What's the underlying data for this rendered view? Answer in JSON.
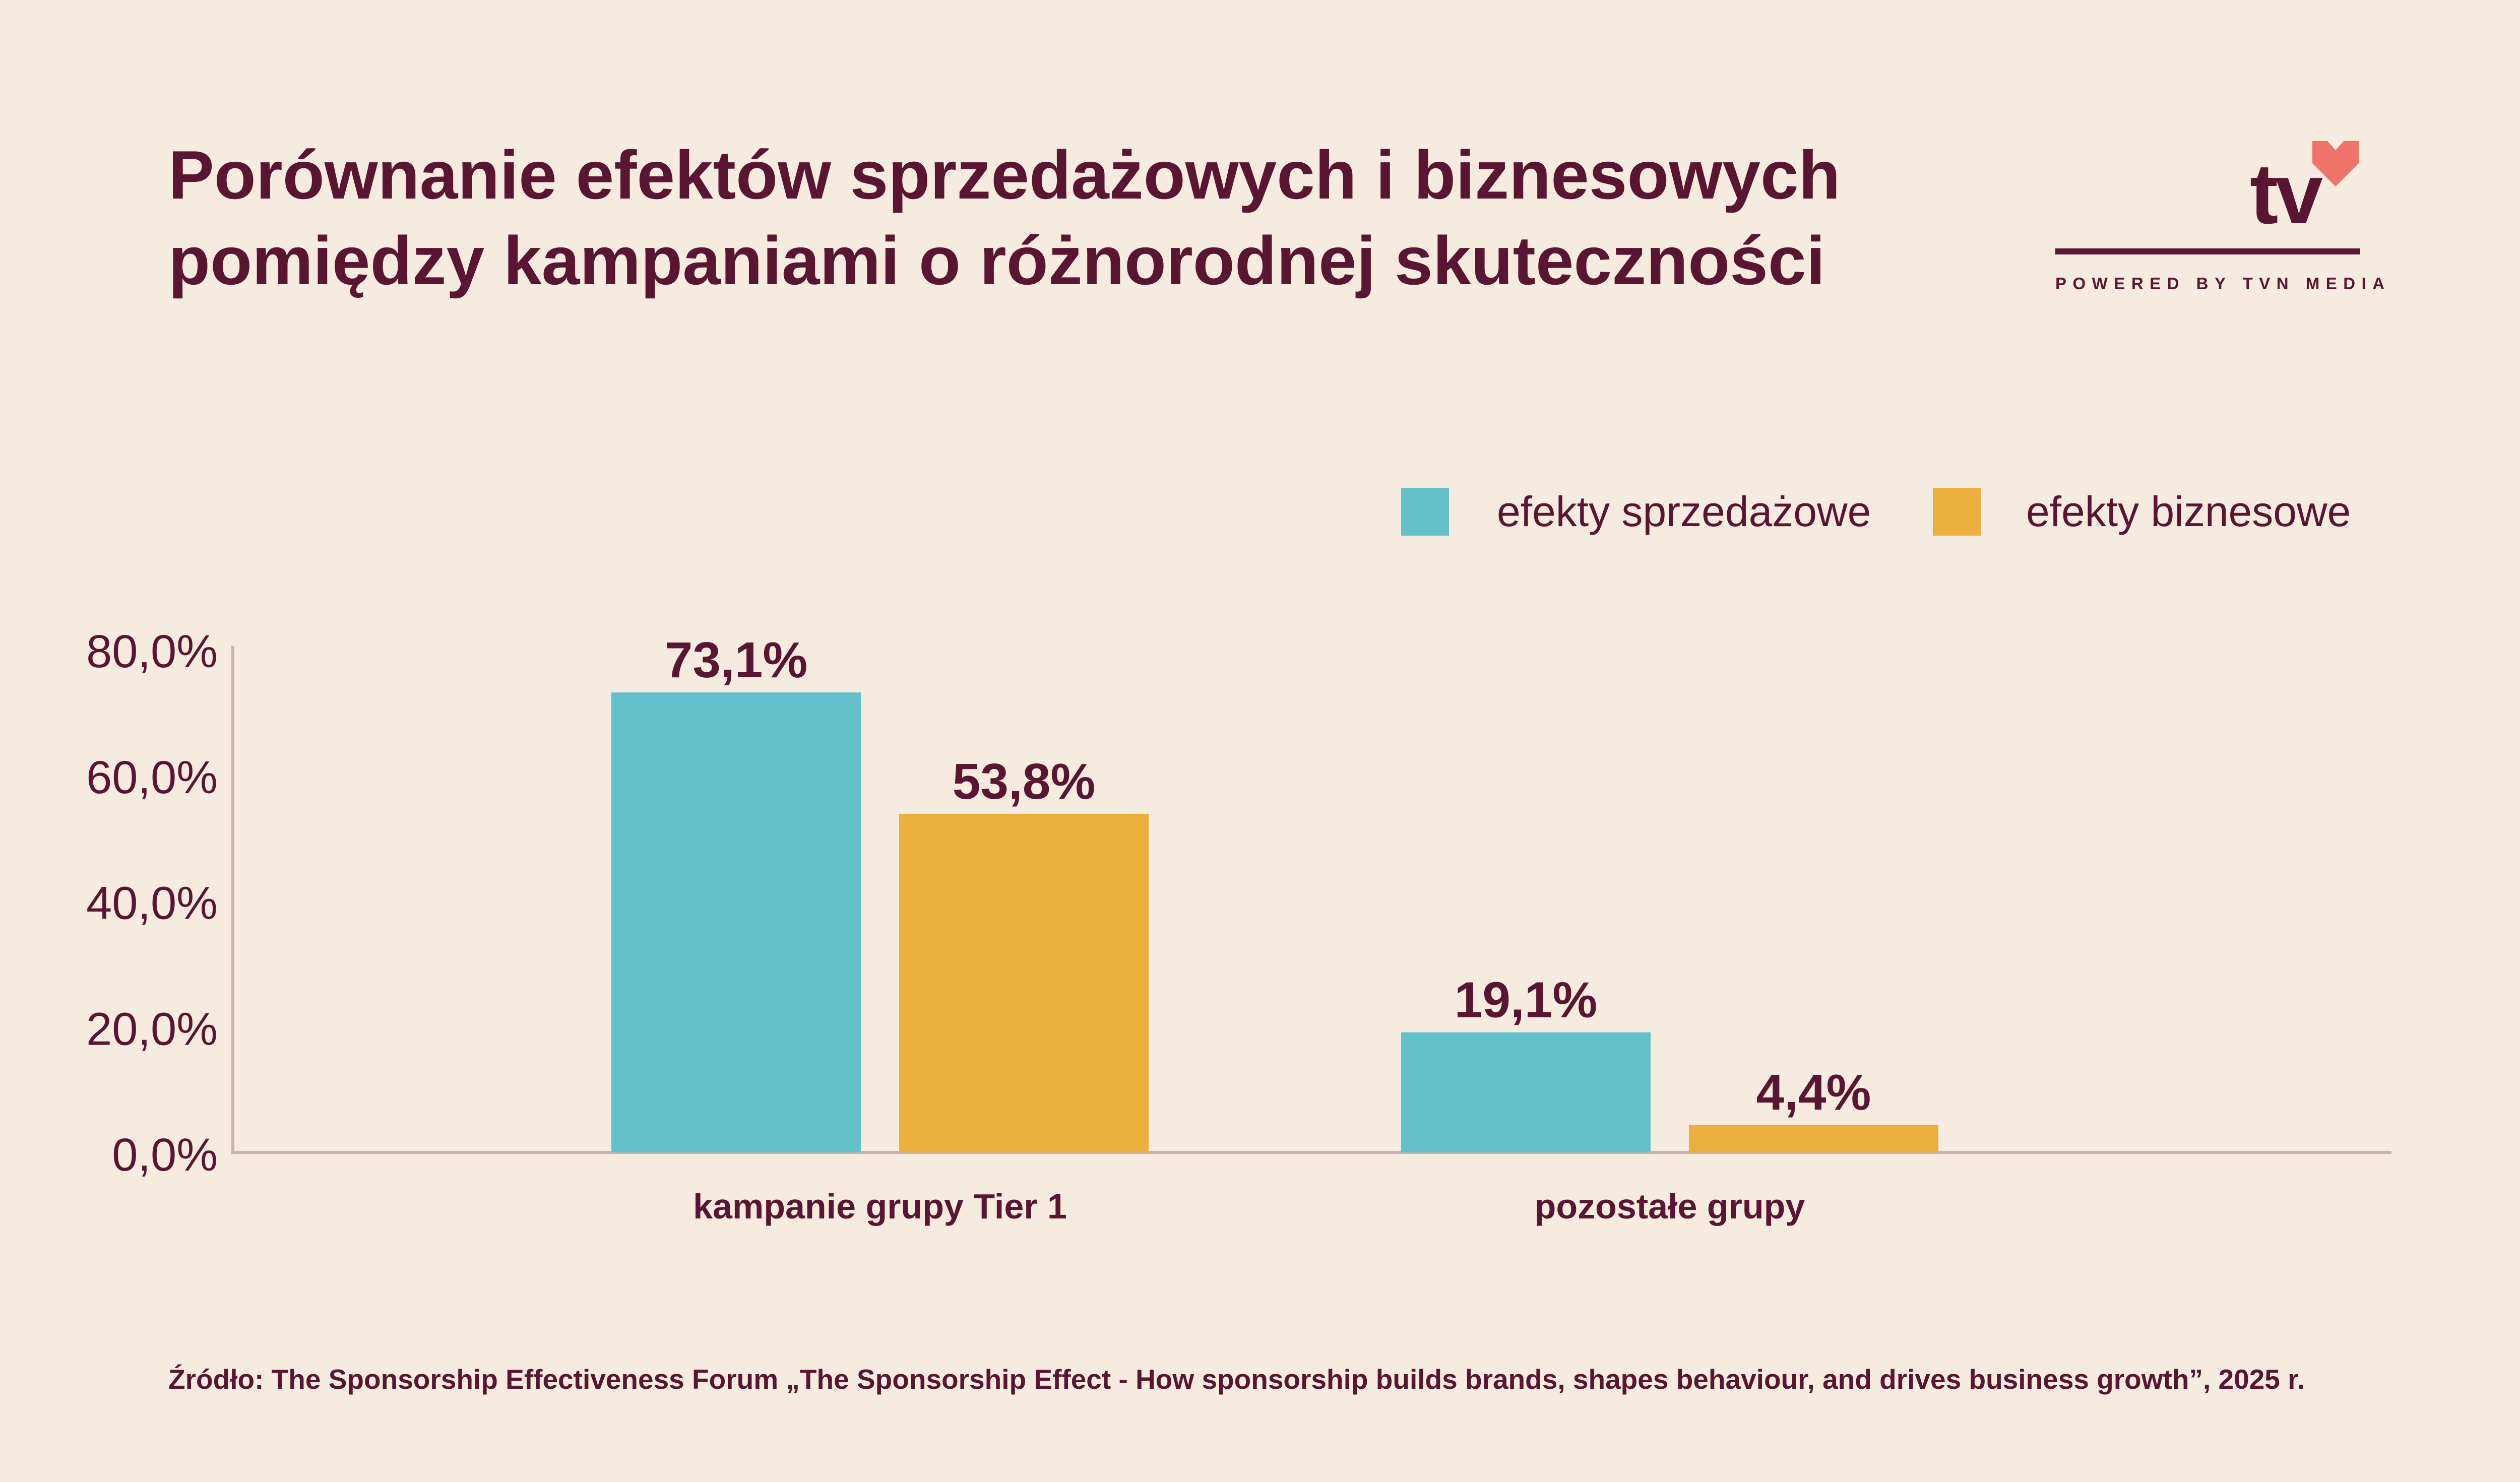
{
  "title": {
    "line1": "Porównanie efektów sprzedażowych i biznesowych",
    "line2": "pomiędzy kampaniami o różnorodnej skuteczności"
  },
  "logo": {
    "text": "tv",
    "tagline": "POWERED BY TVN MEDIA",
    "icon": "heart-icon"
  },
  "colors": {
    "background": "#f5ebdf",
    "text": "#5a1533",
    "series_sales": "#64c1cc",
    "series_business": "#ecae3c",
    "heart": "#f0736a",
    "axis": "#c9b3ae"
  },
  "chart_data": {
    "type": "bar",
    "categories": [
      "kampanie grupy Tier 1",
      "pozostałe grupy"
    ],
    "series": [
      {
        "name": "efekty sprzedażowe",
        "values": [
          73.1,
          19.1
        ],
        "labels": [
          "73,1%",
          "19,1%"
        ],
        "color": "#64c1cc"
      },
      {
        "name": "efekty biznesowe",
        "values": [
          53.8,
          4.4
        ],
        "labels": [
          "53,8%",
          "4,4%"
        ],
        "color": "#ecae3c"
      }
    ],
    "ylim": [
      0,
      80
    ],
    "yticks": [
      0,
      20,
      40,
      60,
      80
    ],
    "ytick_labels": [
      "0,0%",
      "20,0%",
      "40,0%",
      "60,0%",
      "80,0%"
    ],
    "legend": "top-right",
    "title": "",
    "xlabel": "",
    "ylabel": ""
  },
  "source": "Źródło: The Sponsorship Effectiveness Forum „The Sponsorship Effect - How sponsorship builds brands, shapes behaviour, and drives business growth”, 2025 r."
}
